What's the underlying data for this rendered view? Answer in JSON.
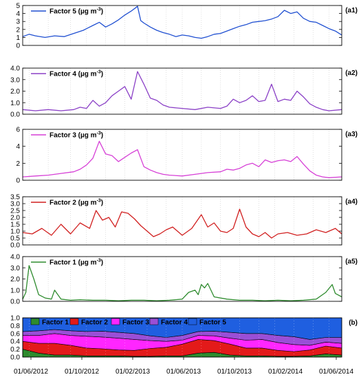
{
  "chart_data": [
    {
      "type": "line",
      "panel_label": "(a1)",
      "series_name": "Factor 5",
      "unit_text": " (µg m",
      "unit_sup": "-3",
      "unit_close": ")",
      "color": "#1f4fd1",
      "ylim": [
        0,
        5
      ],
      "yticks": [
        "0",
        "1",
        "2",
        "3",
        "4",
        "5"
      ],
      "x": [
        0,
        0.02,
        0.04,
        0.07,
        0.1,
        0.13,
        0.16,
        0.19,
        0.22,
        0.24,
        0.26,
        0.28,
        0.3,
        0.32,
        0.34,
        0.36,
        0.37,
        0.38,
        0.4,
        0.42,
        0.44,
        0.46,
        0.48,
        0.5,
        0.52,
        0.54,
        0.56,
        0.58,
        0.6,
        0.62,
        0.64,
        0.66,
        0.68,
        0.7,
        0.72,
        0.74,
        0.76,
        0.78,
        0.8,
        0.82,
        0.84,
        0.86,
        0.88,
        0.9,
        0.92,
        0.94,
        0.96,
        0.98,
        1.0
      ],
      "values": [
        1.1,
        1.4,
        1.2,
        1.0,
        1.2,
        1.1,
        1.5,
        1.9,
        2.5,
        2.9,
        2.3,
        2.7,
        3.2,
        3.8,
        4.3,
        4.9,
        3.1,
        2.8,
        2.3,
        1.9,
        1.6,
        1.4,
        1.1,
        1.3,
        1.2,
        1.0,
        0.9,
        1.1,
        1.4,
        1.5,
        1.8,
        2.1,
        2.4,
        2.6,
        2.9,
        3.0,
        3.1,
        3.3,
        3.6,
        4.4,
        4.0,
        4.2,
        3.4,
        3.0,
        2.9,
        2.5,
        2.1,
        1.8,
        1.3
      ]
    },
    {
      "type": "line",
      "panel_label": "(a2)",
      "series_name": "Factor 4",
      "unit_text": " (µg m",
      "unit_sup": "-3",
      "unit_close": ")",
      "color": "#8a3fc6",
      "ylim": [
        0,
        4
      ],
      "yticks": [
        "0.0",
        "1.0",
        "2.0",
        "3.0",
        "4.0"
      ],
      "x": [
        0,
        0.04,
        0.08,
        0.12,
        0.16,
        0.18,
        0.2,
        0.22,
        0.24,
        0.26,
        0.28,
        0.3,
        0.32,
        0.34,
        0.36,
        0.38,
        0.4,
        0.42,
        0.44,
        0.46,
        0.5,
        0.54,
        0.58,
        0.62,
        0.64,
        0.66,
        0.68,
        0.7,
        0.72,
        0.74,
        0.76,
        0.78,
        0.8,
        0.82,
        0.84,
        0.86,
        0.88,
        0.9,
        0.92,
        0.94,
        0.96,
        1.0
      ],
      "values": [
        0.4,
        0.3,
        0.4,
        0.3,
        0.4,
        0.6,
        0.5,
        1.2,
        0.7,
        1.0,
        1.6,
        2.0,
        2.4,
        1.3,
        3.7,
        2.6,
        1.4,
        1.2,
        0.8,
        0.6,
        0.5,
        0.4,
        0.6,
        0.5,
        0.7,
        1.3,
        1.0,
        1.2,
        1.6,
        1.1,
        1.2,
        2.6,
        1.1,
        1.3,
        1.2,
        2.0,
        1.5,
        0.9,
        0.6,
        0.4,
        0.3,
        0.4
      ]
    },
    {
      "type": "line",
      "panel_label": "(a3)",
      "series_name": "Factor 3",
      "unit_text": " (µg m",
      "unit_sup": "-3",
      "unit_close": ")",
      "color": "#d63fd6",
      "ylim": [
        0,
        6
      ],
      "yticks": [
        "0",
        "2",
        "4",
        "6"
      ],
      "x": [
        0,
        0.04,
        0.08,
        0.12,
        0.16,
        0.18,
        0.2,
        0.22,
        0.24,
        0.26,
        0.28,
        0.3,
        0.32,
        0.34,
        0.36,
        0.38,
        0.4,
        0.42,
        0.44,
        0.46,
        0.5,
        0.54,
        0.58,
        0.62,
        0.64,
        0.66,
        0.68,
        0.7,
        0.72,
        0.74,
        0.76,
        0.78,
        0.8,
        0.82,
        0.84,
        0.86,
        0.88,
        0.9,
        0.92,
        0.94,
        0.96,
        1.0
      ],
      "values": [
        0.4,
        0.5,
        0.6,
        0.8,
        1.0,
        1.3,
        1.8,
        2.6,
        4.6,
        3.1,
        2.9,
        2.2,
        2.7,
        3.2,
        3.6,
        1.6,
        1.2,
        0.9,
        0.7,
        0.6,
        0.5,
        0.7,
        0.9,
        1.0,
        1.3,
        1.2,
        1.4,
        1.8,
        2.0,
        1.6,
        2.4,
        2.1,
        2.3,
        2.4,
        2.2,
        2.8,
        1.9,
        1.1,
        0.6,
        0.4,
        0.3,
        0.4
      ]
    },
    {
      "type": "line",
      "panel_label": "(a4)",
      "series_name": "Factor 2",
      "unit_text": " (µg m",
      "unit_sup": "-3",
      "unit_close": ")",
      "color": "#d11f1f",
      "ylim": [
        0,
        3.5
      ],
      "yticks": [
        "0.0",
        "0.5",
        "1.0",
        "1.5",
        "2.0",
        "2.5",
        "3.0",
        "3.5"
      ],
      "x": [
        0,
        0.03,
        0.06,
        0.09,
        0.12,
        0.15,
        0.18,
        0.21,
        0.23,
        0.25,
        0.27,
        0.29,
        0.31,
        0.33,
        0.35,
        0.37,
        0.39,
        0.41,
        0.43,
        0.45,
        0.47,
        0.5,
        0.53,
        0.56,
        0.58,
        0.6,
        0.62,
        0.64,
        0.66,
        0.68,
        0.7,
        0.72,
        0.74,
        0.76,
        0.78,
        0.8,
        0.83,
        0.86,
        0.89,
        0.92,
        0.95,
        0.98,
        1.0
      ],
      "values": [
        0.9,
        0.8,
        1.2,
        0.7,
        1.5,
        0.8,
        1.6,
        1.2,
        2.5,
        1.8,
        2.0,
        1.3,
        2.4,
        2.3,
        1.9,
        1.4,
        1.0,
        0.6,
        0.8,
        1.1,
        1.3,
        0.7,
        1.2,
        2.2,
        1.3,
        1.6,
        1.0,
        0.9,
        1.2,
        2.6,
        1.3,
        0.8,
        0.6,
        0.9,
        0.5,
        0.8,
        0.9,
        0.7,
        0.8,
        1.1,
        0.9,
        1.2,
        0.8
      ]
    },
    {
      "type": "line",
      "panel_label": "(a5)",
      "series_name": "Factor 1",
      "unit_text": " (µg m",
      "unit_sup": "-3",
      "unit_close": ")",
      "color": "#2e8b2e",
      "ylim": [
        0,
        4
      ],
      "yticks": [
        "0.0",
        "1.0",
        "2.0",
        "3.0",
        "4.0"
      ],
      "x": [
        0,
        0.01,
        0.02,
        0.035,
        0.05,
        0.07,
        0.09,
        0.1,
        0.12,
        0.15,
        0.18,
        0.22,
        0.26,
        0.3,
        0.34,
        0.38,
        0.42,
        0.46,
        0.5,
        0.52,
        0.54,
        0.55,
        0.56,
        0.57,
        0.58,
        0.6,
        0.64,
        0.68,
        0.72,
        0.76,
        0.8,
        0.84,
        0.88,
        0.92,
        0.95,
        0.97,
        0.98,
        1.0
      ],
      "values": [
        0.2,
        0.8,
        3.2,
        2.0,
        0.6,
        0.3,
        0.2,
        1.0,
        0.2,
        0.1,
        0.15,
        0.1,
        0.1,
        0.05,
        0.1,
        0.1,
        0.05,
        0.1,
        0.2,
        0.8,
        1.0,
        0.6,
        1.5,
        1.2,
        1.6,
        0.4,
        0.2,
        0.1,
        0.1,
        0.05,
        0.1,
        0.05,
        0.1,
        0.2,
        0.8,
        1.5,
        0.7,
        0.4
      ]
    },
    {
      "type": "area",
      "panel_label": "(b)",
      "stacked": true,
      "ylim": [
        0,
        1.0
      ],
      "yticks": [
        "0.0",
        "0.2",
        "0.4",
        "0.6",
        "0.8",
        "1.0"
      ],
      "x": [
        0,
        0.05,
        0.1,
        0.15,
        0.2,
        0.25,
        0.3,
        0.35,
        0.4,
        0.45,
        0.5,
        0.55,
        0.6,
        0.65,
        0.7,
        0.75,
        0.8,
        0.85,
        0.9,
        0.95,
        1.0
      ],
      "series": [
        {
          "name": "Factor 1",
          "color": "#2e8b2e",
          "values": [
            0.2,
            0.1,
            0.05,
            0.05,
            0.03,
            0.03,
            0.03,
            0.02,
            0.02,
            0.03,
            0.03,
            0.1,
            0.12,
            0.05,
            0.03,
            0.03,
            0.02,
            0.02,
            0.03,
            0.08,
            0.05
          ]
        },
        {
          "name": "Factor 2",
          "color": "#e31a1a",
          "values": [
            0.2,
            0.25,
            0.3,
            0.25,
            0.2,
            0.18,
            0.15,
            0.15,
            0.2,
            0.22,
            0.3,
            0.35,
            0.3,
            0.28,
            0.2,
            0.2,
            0.15,
            0.12,
            0.15,
            0.2,
            0.18
          ]
        },
        {
          "name": "Factor 3",
          "color": "#ff26ff",
          "values": [
            0.15,
            0.2,
            0.25,
            0.25,
            0.3,
            0.3,
            0.3,
            0.28,
            0.2,
            0.15,
            0.1,
            0.1,
            0.12,
            0.15,
            0.2,
            0.22,
            0.2,
            0.18,
            0.12,
            0.1,
            0.12
          ]
        },
        {
          "name": "Factor 4",
          "color": "#9a4fd6",
          "values": [
            0.1,
            0.12,
            0.1,
            0.12,
            0.12,
            0.15,
            0.15,
            0.15,
            0.12,
            0.1,
            0.12,
            0.1,
            0.12,
            0.15,
            0.17,
            0.15,
            0.18,
            0.2,
            0.15,
            0.12,
            0.15
          ]
        },
        {
          "name": "Factor 5",
          "color": "#1f5fe0",
          "values": [
            0.35,
            0.33,
            0.3,
            0.33,
            0.35,
            0.34,
            0.37,
            0.4,
            0.46,
            0.5,
            0.45,
            0.35,
            0.34,
            0.37,
            0.4,
            0.4,
            0.45,
            0.48,
            0.55,
            0.5,
            0.5
          ]
        }
      ],
      "xtick_labels": [
        "01/06/2012",
        "01/10/2012",
        "01/02/2013",
        "01/06/2013",
        "01/10/2013",
        "01/02/2014",
        "01/06/2014"
      ]
    }
  ]
}
